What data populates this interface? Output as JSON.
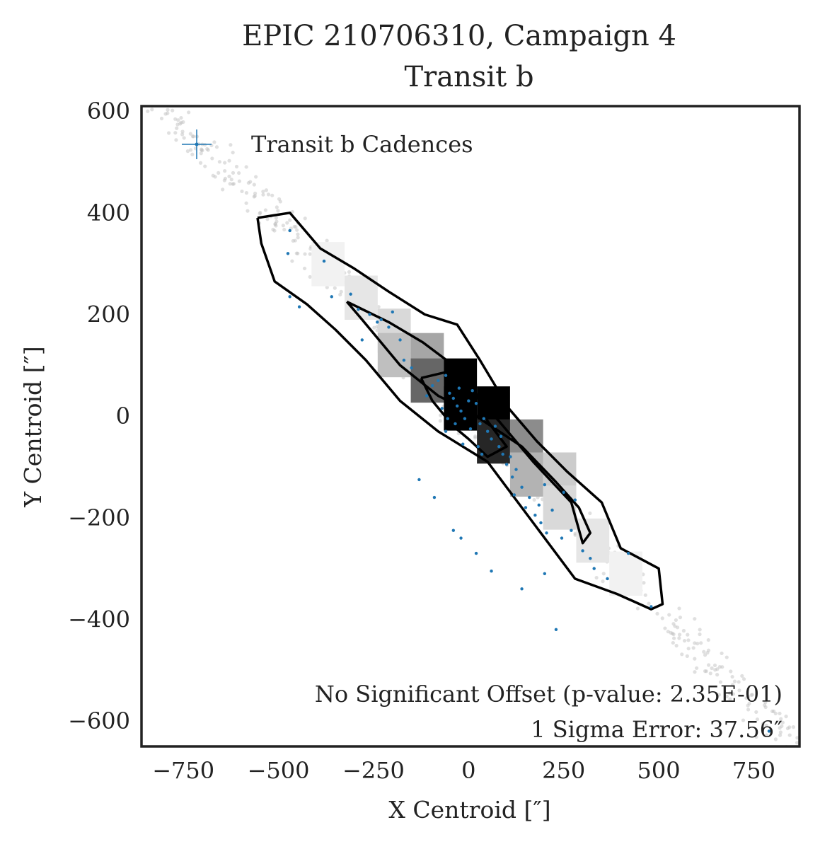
{
  "chart_data": {
    "type": "scatter",
    "title": "EPIC 210706310, Campaign 4",
    "subtitle": "Transit b",
    "xlabel": "X Centroid [″]",
    "ylabel": "Y Centroid [″]",
    "xlim": [
      -860,
      870
    ],
    "ylim": [
      -650,
      610
    ],
    "x_ticks": [
      -750,
      -500,
      -250,
      0,
      250,
      500,
      750
    ],
    "x_tick_labels": [
      "−750",
      "−500",
      "−250",
      "0",
      "250",
      "500",
      "750"
    ],
    "y_ticks": [
      600,
      400,
      200,
      0,
      -200,
      -400,
      -600
    ],
    "y_tick_labels": [
      "600",
      "400",
      "200",
      "0",
      "−200",
      "−400",
      "−600"
    ],
    "grid": false,
    "legend": {
      "position": "top-left",
      "entries": [
        "Transit b Cadences"
      ]
    },
    "colors": {
      "cadence": "#1f77b4",
      "background_points": "#bbbbbb",
      "contour": "#000000",
      "frame": "#222222"
    },
    "annotations": [
      "No Significant Offset (p-value: 2.35E-01)",
      "1 Sigma Error: 37.56″"
    ],
    "histogram": {
      "bin_size": 87,
      "bins": [
        {
          "x": -413,
          "y": 299,
          "shade": 0.05
        },
        {
          "x": -326,
          "y": 233,
          "shade": 0.1
        },
        {
          "x": -239,
          "y": 168,
          "shade": 0.15
        },
        {
          "x": -239,
          "y": 120,
          "shade": 0.25
        },
        {
          "x": -152,
          "y": 120,
          "shade": 0.35
        },
        {
          "x": -152,
          "y": 70,
          "shade": 0.6
        },
        {
          "x": -65,
          "y": 70,
          "shade": 1.0
        },
        {
          "x": -65,
          "y": 15,
          "shade": 1.0
        },
        {
          "x": 22,
          "y": 15,
          "shade": 1.0
        },
        {
          "x": 22,
          "y": -50,
          "shade": 0.85
        },
        {
          "x": 109,
          "y": -50,
          "shade": 0.45
        },
        {
          "x": 109,
          "y": -115,
          "shade": 0.3
        },
        {
          "x": 196,
          "y": -115,
          "shade": 0.2
        },
        {
          "x": 196,
          "y": -180,
          "shade": 0.15
        },
        {
          "x": 283,
          "y": -245,
          "shade": 0.1
        },
        {
          "x": 370,
          "y": -310,
          "shade": 0.05
        }
      ]
    },
    "contours": [
      {
        "name": "outer",
        "points": [
          [
            -555,
            390
          ],
          [
            -470,
            400
          ],
          [
            -390,
            330
          ],
          [
            -300,
            290
          ],
          [
            -210,
            245
          ],
          [
            -115,
            200
          ],
          [
            -30,
            180
          ],
          [
            30,
            110
          ],
          [
            70,
            60
          ],
          [
            100,
            20
          ],
          [
            180,
            -50
          ],
          [
            260,
            -110
          ],
          [
            350,
            -170
          ],
          [
            400,
            -260
          ],
          [
            500,
            -300
          ],
          [
            510,
            -370
          ],
          [
            480,
            -380
          ],
          [
            390,
            -350
          ],
          [
            280,
            -320
          ],
          [
            170,
            -210
          ],
          [
            50,
            -90
          ],
          [
            -80,
            -30
          ],
          [
            -180,
            30
          ],
          [
            -270,
            110
          ],
          [
            -350,
            170
          ],
          [
            -425,
            220
          ],
          [
            -510,
            265
          ],
          [
            -545,
            340
          ],
          [
            -555,
            390
          ]
        ]
      },
      {
        "name": "middle",
        "points": [
          [
            -320,
            225
          ],
          [
            -210,
            185
          ],
          [
            -120,
            145
          ],
          [
            -40,
            100
          ],
          [
            20,
            40
          ],
          [
            80,
            -10
          ],
          [
            170,
            -90
          ],
          [
            270,
            -170
          ],
          [
            300,
            -250
          ],
          [
            320,
            -230
          ],
          [
            290,
            -180
          ],
          [
            230,
            -130
          ],
          [
            140,
            -60
          ],
          [
            60,
            -20
          ],
          [
            0,
            10
          ],
          [
            -80,
            40
          ],
          [
            -180,
            100
          ],
          [
            -280,
            190
          ],
          [
            -320,
            225
          ]
        ]
      },
      {
        "name": "inner",
        "points": [
          [
            -125,
            75
          ],
          [
            -40,
            90
          ],
          [
            10,
            60
          ],
          [
            50,
            -10
          ],
          [
            100,
            -60
          ],
          [
            50,
            -80
          ],
          [
            0,
            -45
          ],
          [
            -40,
            -20
          ],
          [
            -95,
            30
          ],
          [
            -125,
            75
          ]
        ]
      }
    ],
    "series": [
      {
        "name": "Transit b Cadences",
        "points": [
          [
            -470,
            365
          ],
          [
            -475,
            320
          ],
          [
            -380,
            305
          ],
          [
            -360,
            235
          ],
          [
            -310,
            240
          ],
          [
            -470,
            235
          ],
          [
            -290,
            210
          ],
          [
            -260,
            200
          ],
          [
            -240,
            185
          ],
          [
            -210,
            175
          ],
          [
            -180,
            150
          ],
          [
            -170,
            110
          ],
          [
            -150,
            95
          ],
          [
            -95,
            60
          ],
          [
            -80,
            70
          ],
          [
            -60,
            80
          ],
          [
            -50,
            45
          ],
          [
            -40,
            35
          ],
          [
            -30,
            20
          ],
          [
            -20,
            10
          ],
          [
            -10,
            -5
          ],
          [
            0,
            30
          ],
          [
            10,
            50
          ],
          [
            20,
            25
          ],
          [
            30,
            -15
          ],
          [
            40,
            -5
          ],
          [
            50,
            -30
          ],
          [
            60,
            -45
          ],
          [
            70,
            -20
          ],
          [
            80,
            -60
          ],
          [
            90,
            -75
          ],
          [
            100,
            -95
          ],
          [
            115,
            -120
          ],
          [
            125,
            -105
          ],
          [
            140,
            -140
          ],
          [
            150,
            -180
          ],
          [
            160,
            -160
          ],
          [
            175,
            -195
          ],
          [
            190,
            -210
          ],
          [
            205,
            -230
          ],
          [
            220,
            -185
          ],
          [
            245,
            -240
          ],
          [
            270,
            -225
          ],
          [
            300,
            -265
          ],
          [
            320,
            -280
          ],
          [
            330,
            -300
          ],
          [
            365,
            -320
          ],
          [
            280,
            -165
          ],
          [
            250,
            -150
          ],
          [
            200,
            -135
          ],
          [
            -110,
            40
          ],
          [
            -70,
            15
          ],
          [
            -55,
            -5
          ],
          [
            -25,
            55
          ],
          [
            5,
            -25
          ],
          [
            25,
            -60
          ],
          [
            35,
            -75
          ],
          [
            -200,
            205
          ],
          [
            -230,
            190
          ],
          [
            -280,
            150
          ],
          [
            -130,
            -125
          ],
          [
            -90,
            -160
          ],
          [
            -40,
            -225
          ],
          [
            -20,
            -240
          ],
          [
            20,
            -270
          ],
          [
            60,
            -305
          ],
          [
            140,
            -340
          ],
          [
            200,
            -310
          ],
          [
            230,
            -420
          ],
          [
            420,
            -270
          ],
          [
            480,
            -375
          ],
          [
            790,
            -620
          ],
          [
            -445,
            215
          ],
          [
            110,
            -80
          ],
          [
            85,
            -40
          ],
          [
            -15,
            -55
          ],
          [
            -35,
            -15
          ],
          [
            -60,
            -30
          ],
          [
            120,
            -155
          ],
          [
            185,
            -175
          ]
        ]
      }
    ]
  }
}
